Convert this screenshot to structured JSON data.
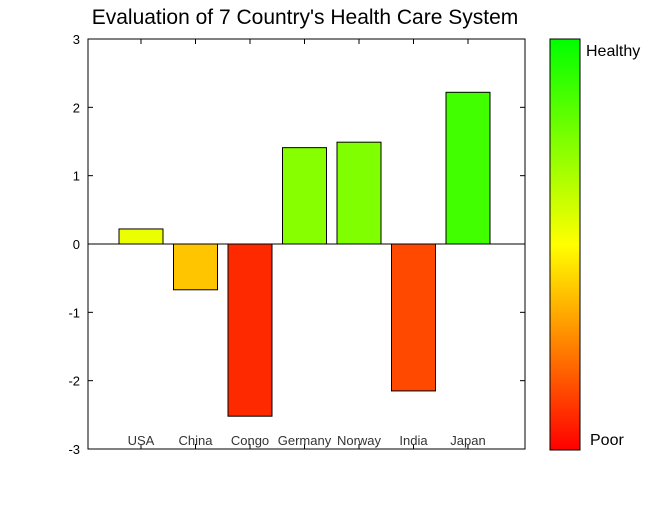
{
  "chart_data": {
    "type": "bar",
    "title": "Evaluation of 7 Country's Health Care System",
    "categories": [
      "USA",
      "China",
      "Congo",
      "Germany",
      "Norway",
      "India",
      "Japan"
    ],
    "values": [
      0.22,
      -0.67,
      -2.52,
      1.41,
      1.49,
      -2.15,
      2.22
    ],
    "ylim": [
      -3,
      3
    ],
    "yticks": [
      -3,
      -2,
      -1,
      0,
      1,
      2,
      3
    ],
    "xlabel": "",
    "ylabel": "",
    "grid": false,
    "colormap": {
      "min": -3,
      "max": 3,
      "stops": [
        "#ff0000",
        "#ffff00",
        "#00ff00"
      ],
      "top_label": "Healthy",
      "bottom_label": "Poor"
    }
  }
}
